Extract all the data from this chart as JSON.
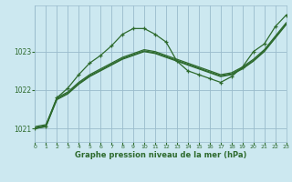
{
  "title": "Graphe pression niveau de la mer (hPa)",
  "background_color": "#cce8f0",
  "grid_color": "#99bbcc",
  "line_color": "#2d6a2d",
  "xlim": [
    0,
    23
  ],
  "ylim": [
    1020.65,
    1024.2
  ],
  "yticks": [
    1021,
    1022,
    1023
  ],
  "xticks": [
    0,
    1,
    2,
    3,
    4,
    5,
    6,
    7,
    8,
    9,
    10,
    11,
    12,
    13,
    14,
    15,
    16,
    17,
    18,
    19,
    20,
    21,
    22,
    23
  ],
  "y_zigzag": [
    1021.0,
    1021.05,
    1021.8,
    1022.05,
    1022.4,
    1022.7,
    1022.9,
    1023.15,
    1023.45,
    1023.6,
    1023.6,
    1023.45,
    1023.25,
    1022.75,
    1022.5,
    1022.4,
    1022.3,
    1022.2,
    1022.35,
    1022.6,
    1023.0,
    1023.2,
    1023.65,
    1023.95
  ],
  "y_line1": [
    1021.0,
    1021.05,
    1021.75,
    1021.9,
    1022.15,
    1022.35,
    1022.5,
    1022.65,
    1022.8,
    1022.9,
    1023.0,
    1022.95,
    1022.85,
    1022.75,
    1022.65,
    1022.55,
    1022.45,
    1022.35,
    1022.4,
    1022.55,
    1022.75,
    1023.0,
    1023.35,
    1023.7
  ],
  "y_line2": [
    1021.05,
    1021.1,
    1021.8,
    1021.95,
    1022.2,
    1022.4,
    1022.55,
    1022.7,
    1022.85,
    1022.95,
    1023.05,
    1023.0,
    1022.9,
    1022.8,
    1022.7,
    1022.6,
    1022.5,
    1022.4,
    1022.45,
    1022.6,
    1022.8,
    1023.05,
    1023.4,
    1023.75
  ],
  "y_line3": [
    1021.02,
    1021.08,
    1021.77,
    1021.92,
    1022.17,
    1022.37,
    1022.52,
    1022.67,
    1022.82,
    1022.92,
    1023.02,
    1022.97,
    1022.87,
    1022.77,
    1022.67,
    1022.57,
    1022.47,
    1022.37,
    1022.42,
    1022.57,
    1022.77,
    1023.02,
    1023.37,
    1023.72
  ]
}
